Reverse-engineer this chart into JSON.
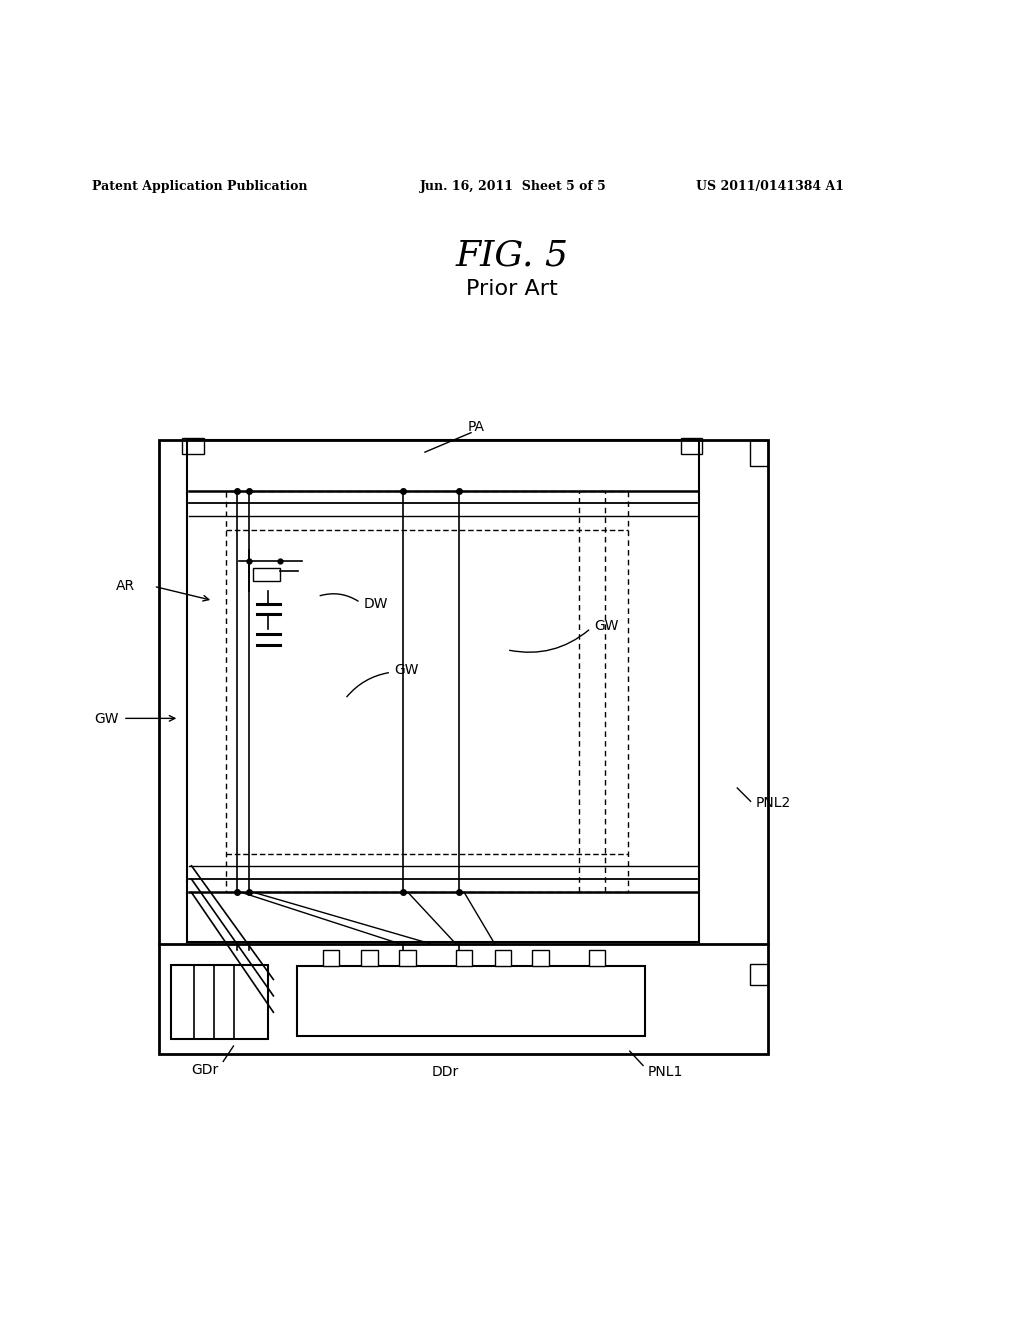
{
  "bg_color": "#ffffff",
  "line_color": "#000000",
  "header_text": "Patent Application Publication",
  "header_date": "Jun. 16, 2011  Sheet 5 of 5",
  "header_patent": "US 2011/0141384 A1",
  "fig_title": "FIG. 5",
  "fig_subtitle": "Prior Art"
}
